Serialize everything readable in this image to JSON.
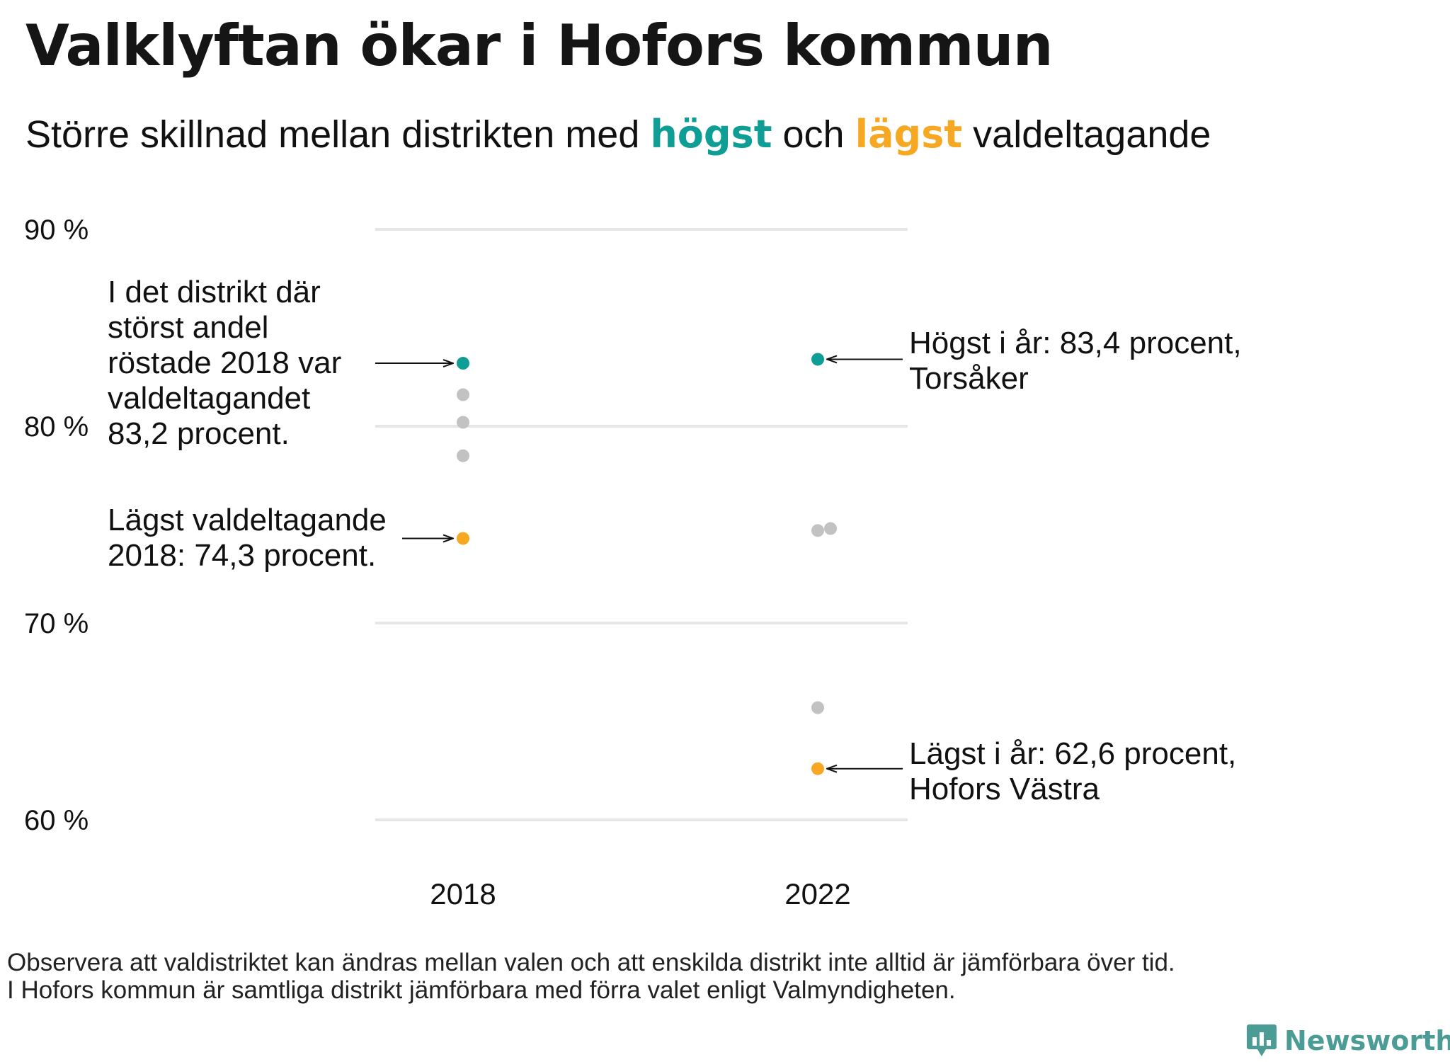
{
  "title": "Valklyftan ökar i Hofors kommun",
  "subtitle": {
    "part1": "Större  skillnad  mellan  distrikten   med ",
    "highest": "högst",
    "part2": " och ",
    "lowest": "lägst",
    "part3": " valdeltagande"
  },
  "colors": {
    "highest": "#0f9e95",
    "lowest": "#f7a823",
    "other": "#c2c2c2",
    "grid": "#e6e6e6"
  },
  "chart_data": {
    "type": "scatter",
    "title": "Valklyftan ökar i Hofors kommun",
    "categories": [
      "2018",
      "2022"
    ],
    "y_ticks": [
      90,
      80,
      70,
      60
    ],
    "y_tick_labels": [
      "90 %",
      "80 %",
      "70 %",
      "60 %"
    ],
    "ylim": [
      60,
      90
    ],
    "grid": true,
    "series": [
      {
        "category": "2018",
        "values": [
          83.2,
          81.6,
          80.2,
          78.5,
          74.3
        ],
        "highest": 83.2,
        "lowest": 74.3
      },
      {
        "category": "2022",
        "values": [
          83.4,
          74.7,
          74.8,
          65.7,
          62.6
        ],
        "highest": 83.4,
        "lowest": 62.6
      }
    ],
    "annotations": {
      "high_2018": [
        "I det distrikt där",
        "störst andel",
        "röstade 2018 var",
        "valdeltagandet",
        "83,2 procent."
      ],
      "low_2018": [
        "Lägst valdeltagande",
        "2018: 74,3 procent."
      ],
      "high_2022": [
        "Högst i år: 83,4 procent,",
        "Torsåker"
      ],
      "low_2022": [
        "Lägst i år: 62,6 procent,",
        "Hofors Västra"
      ]
    }
  },
  "footnote": {
    "line1": "Observera att valdistriktet kan ändras mellan valen och att enskilda distrikt inte alltid är jämförbara över tid.",
    "line2": "I Hofors kommun är samtliga distrikt jämförbara med förra valet enligt Valmyndigheten."
  },
  "logo": {
    "text": "Newsworthy",
    "icon": "newsworthy-chart-icon"
  }
}
